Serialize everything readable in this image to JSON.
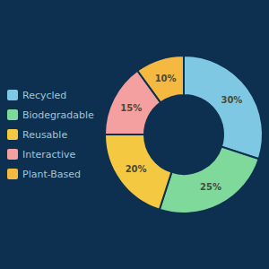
{
  "chart_data": {
    "type": "donut",
    "categories": [
      "Recycled",
      "Biodegradable",
      "Reusable",
      "Interactive",
      "Plant-Based"
    ],
    "values": [
      30,
      25,
      20,
      15,
      10
    ],
    "value_labels": [
      "30%",
      "25%",
      "20%",
      "15%",
      "10%"
    ],
    "colors": [
      "#7EC8E3",
      "#7ED99A",
      "#F5C842",
      "#F5A0A0",
      "#F5B942"
    ],
    "data_labels": true,
    "legend": "left"
  }
}
